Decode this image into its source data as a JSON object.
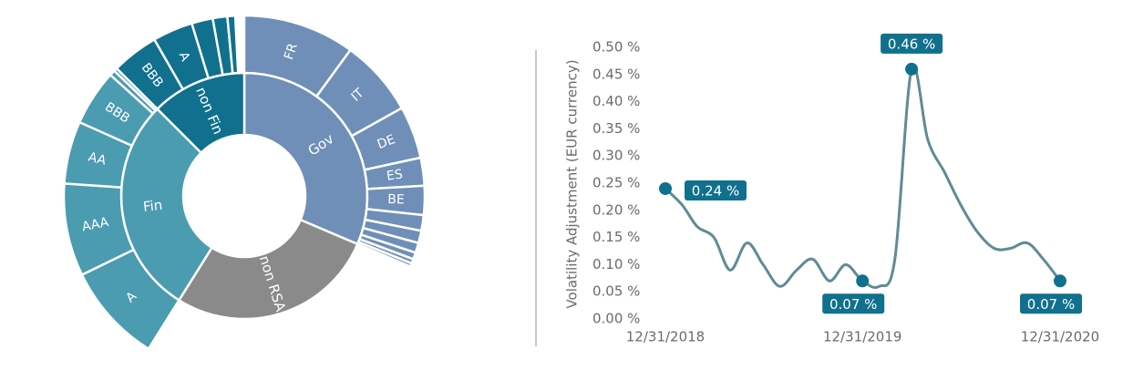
{
  "chart_data": [
    {
      "type": "sunburst",
      "nodes": [
        {
          "name": "Gov",
          "value": 31.4,
          "color": "#6f8fb8",
          "children": [
            {
              "name": "FR",
              "value": 10
            },
            {
              "name": "IT",
              "value": 6.9
            },
            {
              "name": "DE",
              "value": 4.7
            },
            {
              "name": "ES",
              "value": 2.5
            },
            {
              "name": "BE",
              "value": 2.6
            },
            {
              "name": null,
              "value": 1.4
            },
            {
              "name": null,
              "value": 1.1
            },
            {
              "name": null,
              "value": 0.9
            },
            {
              "name": null,
              "value": 0.6
            },
            {
              "name": null,
              "value": 0.4
            },
            {
              "name": null,
              "value": 0.3
            }
          ]
        },
        {
          "name": "non RSA",
          "value": 27.5,
          "color": "#8a8a8a",
          "children": []
        },
        {
          "name": "Fin",
          "value": 28.6,
          "color": "#4b9bb1",
          "children": [
            {
              "name": "A",
              "value": 8.9
            },
            {
              "name": "AAA",
              "value": 8.3
            },
            {
              "name": "AA",
              "value": 5.6
            },
            {
              "name": "BBB",
              "value": 5.0
            },
            {
              "name": null,
              "value": 0.5
            },
            {
              "name": null,
              "value": 0.3
            }
          ]
        },
        {
          "name": "non Fin",
          "value": 12.5,
          "color": "#10708d",
          "children": [
            {
              "name": "BBB",
              "value": 4.2
            },
            {
              "name": "A",
              "value": 3.6
            },
            {
              "name": null,
              "value": 1.9
            },
            {
              "name": null,
              "value": 1.3
            },
            {
              "name": null,
              "value": 0.7
            }
          ]
        }
      ]
    },
    {
      "type": "line",
      "y_label": "Volatility Adjustment (EUR currency)",
      "x": [
        "12/31/2018",
        "01/31/2019",
        "02/28/2019",
        "03/31/2019",
        "04/30/2019",
        "05/31/2019",
        "06/30/2019",
        "07/31/2019",
        "08/31/2019",
        "09/30/2019",
        "10/31/2019",
        "11/30/2019",
        "12/31/2019",
        "01/31/2020",
        "02/29/2020",
        "03/31/2020",
        "04/30/2020",
        "05/31/2020",
        "06/30/2020",
        "07/31/2020",
        "08/31/2020",
        "09/30/2020",
        "10/31/2020",
        "11/30/2020",
        "12/31/2020"
      ],
      "series": [
        {
          "name": null,
          "color": "#5f8b95",
          "marker_color": "#10708d",
          "values": [
            0.24,
            0.21,
            0.17,
            0.15,
            0.09,
            0.14,
            0.1,
            0.06,
            0.09,
            0.11,
            0.07,
            0.1,
            0.07,
            0.06,
            0.11,
            0.46,
            0.33,
            0.27,
            0.21,
            0.16,
            0.13,
            0.13,
            0.14,
            0.11,
            0.07
          ],
          "value_labels": [
            "0.24 %",
            null,
            null,
            null,
            null,
            null,
            null,
            null,
            null,
            null,
            null,
            null,
            "0.07 %",
            null,
            null,
            "0.46 %",
            null,
            null,
            null,
            null,
            null,
            null,
            null,
            null,
            "0.07 %"
          ]
        }
      ],
      "xlim": [
        "12/31/2018",
        "12/31/2020"
      ],
      "xticks": [
        "12/31/2018",
        "12/31/2019",
        "12/31/2020"
      ],
      "ylim": [
        0,
        0.5
      ],
      "yticks": [
        {
          "value": 0,
          "label": "0.00 %"
        },
        {
          "value": 0.05,
          "label": "0.05 %"
        },
        {
          "value": 0.1,
          "label": "0.10 %"
        },
        {
          "value": 0.15,
          "label": "0.15 %"
        },
        {
          "value": 0.2,
          "label": "0.20 %"
        },
        {
          "value": 0.25,
          "label": "0.25 %"
        },
        {
          "value": 0.3,
          "label": "0.30 %"
        },
        {
          "value": 0.35,
          "label": "0.35 %"
        },
        {
          "value": 0.4,
          "label": "0.40 %"
        },
        {
          "value": 0.45,
          "label": "0.45 %"
        },
        {
          "value": 0.5,
          "label": "0.50 %"
        }
      ]
    }
  ]
}
